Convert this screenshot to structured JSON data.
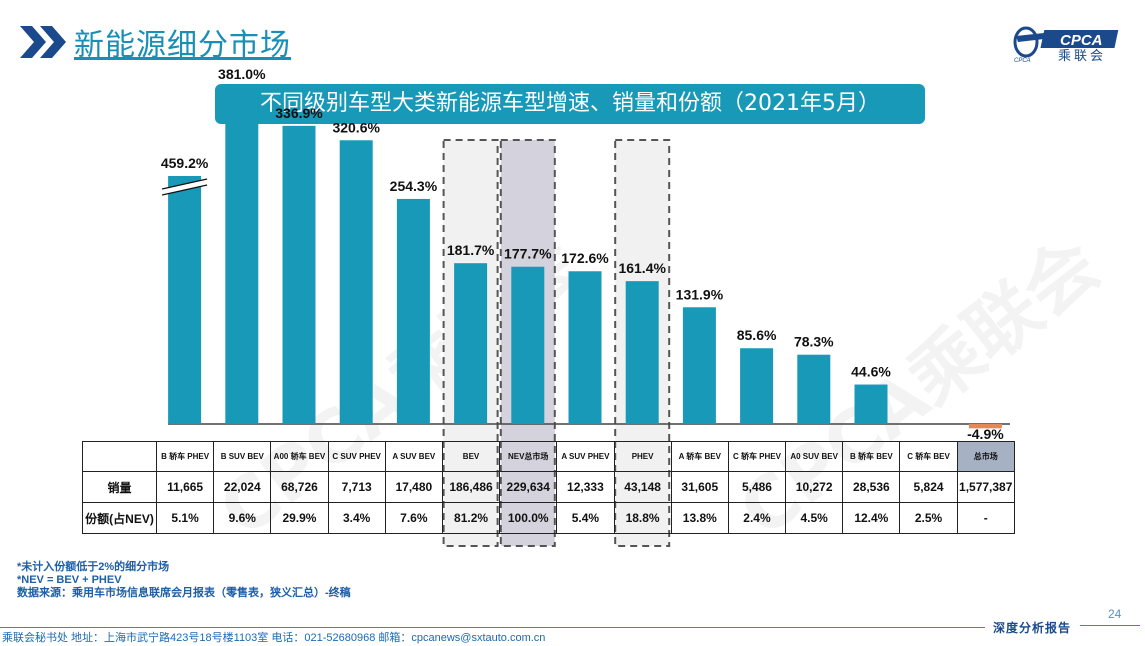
{
  "header": {
    "title": "新能源细分市场",
    "logo_text": "CPCA",
    "logo_subtext": "乘联会",
    "logo_small": "CPCA"
  },
  "banner": {
    "title": "不同级别车型大类新能源车型增速、销量和份额（2021年5月）"
  },
  "chart_data": {
    "type": "bar",
    "categories": [
      "B 轿车 PHEV",
      "B SUV BEV",
      "A00 轿车 BEV",
      "C SUV PHEV",
      "A SUV BEV",
      "BEV",
      "NEV总市场",
      "A SUV PHEV",
      "PHEV",
      "A 轿车 BEV",
      "C 轿车 PHEV",
      "A0 SUV BEV",
      "B 轿车 BEV",
      "C 轿车 BEV",
      "总市场"
    ],
    "values": [
      459.2,
      381.0,
      336.9,
      320.6,
      254.3,
      181.7,
      177.7,
      172.6,
      161.4,
      131.9,
      85.6,
      78.3,
      44.6,
      null,
      -4.9
    ],
    "value_labels": [
      "459.2%",
      "381.0%",
      "336.9%",
      "320.6%",
      "254.3%",
      "181.7%",
      "177.7%",
      "172.6%",
      "161.4%",
      "131.9%",
      "85.6%",
      "78.3%",
      "44.6%",
      "",
      "-4.9%"
    ],
    "axis_break_on": "B 轿车 PHEV",
    "highlighted": [
      "BEV",
      "NEV总市场",
      "PHEV"
    ],
    "bar_color": "#1899b8",
    "negative_color": "#e08a5a",
    "table": {
      "rows": [
        {
          "label": "销量",
          "values": [
            "11,665",
            "22,024",
            "68,726",
            "7,713",
            "17,480",
            "186,486",
            "229,634",
            "12,333",
            "43,148",
            "31,605",
            "5,486",
            "10,272",
            "28,536",
            "5,824",
            "1,577,387"
          ]
        },
        {
          "label": "份额(占NEV)",
          "values": [
            "5.1%",
            "9.6%",
            "29.9%",
            "3.4%",
            "7.6%",
            "81.2%",
            "100.0%",
            "5.4%",
            "18.8%",
            "13.8%",
            "2.4%",
            "4.5%",
            "12.4%",
            "2.5%",
            "-"
          ]
        }
      ]
    }
  },
  "footnotes": [
    "*未计入份额低于2%的细分市场",
    "*NEV = BEV + PHEV",
    "数据来源：乘用车市场信息联席会月报表（零售表，狭义汇总）-终稿"
  ],
  "watermark": "CPCA乘联会",
  "page_number": "24",
  "footer": {
    "report_label": "深度分析报告",
    "contact": "乘联会秘书处   地址：上海市武宁路423号18号楼1103室  电话：021-52680968   邮箱：cpcanews@sxtauto.com.cn"
  }
}
